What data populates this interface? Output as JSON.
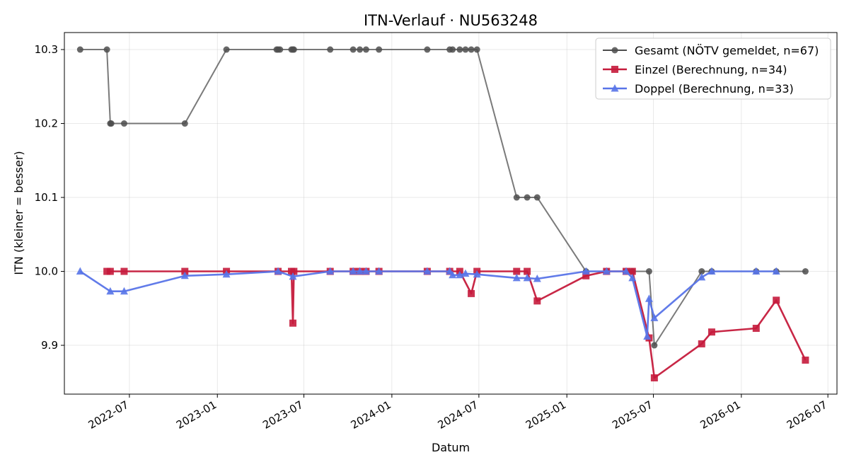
{
  "chart_data": {
    "type": "line",
    "title": "ITN-Verlauf · NU563248",
    "xlabel": "Datum",
    "ylabel": "ITN  (kleiner = besser)",
    "x_axis": {
      "kind": "date",
      "range": [
        "2022-02-15",
        "2026-07-20"
      ],
      "ticks": [
        "2022-07-01",
        "2023-01-01",
        "2023-07-01",
        "2024-01-01",
        "2024-07-01",
        "2025-01-01",
        "2025-07-01",
        "2026-01-01",
        "2026-07-01"
      ],
      "tick_labels": [
        "2022-07",
        "2023-01",
        "2023-07",
        "2024-01",
        "2024-07",
        "2025-01",
        "2025-07",
        "2026-01",
        "2026-07"
      ]
    },
    "y_axis": {
      "range": [
        9.834,
        10.323
      ],
      "ticks": [
        9.9,
        10.0,
        10.1,
        10.2,
        10.3
      ],
      "tick_labels": [
        "9.9",
        "10.0",
        "10.1",
        "10.2",
        "10.3"
      ]
    },
    "grid": true,
    "legend_position": "top-right",
    "series": [
      {
        "name": "Gesamt (NÖTV gemeldet, n=67)",
        "color": "#4d4d4d",
        "marker": "circle",
        "points": [
          [
            "2022-03-20",
            10.3
          ],
          [
            "2022-05-15",
            10.3
          ],
          [
            "2022-05-22",
            10.2
          ],
          [
            "2022-05-24",
            10.2
          ],
          [
            "2022-06-20",
            10.2
          ],
          [
            "2022-10-25",
            10.2
          ],
          [
            "2023-01-20",
            10.3
          ],
          [
            "2023-05-05",
            10.3
          ],
          [
            "2023-05-08",
            10.3
          ],
          [
            "2023-05-12",
            10.3
          ],
          [
            "2023-06-05",
            10.3
          ],
          [
            "2023-06-08",
            10.3
          ],
          [
            "2023-06-10",
            10.3
          ],
          [
            "2023-08-25",
            10.3
          ],
          [
            "2023-10-12",
            10.3
          ],
          [
            "2023-10-26",
            10.3
          ],
          [
            "2023-11-08",
            10.3
          ],
          [
            "2023-12-05",
            10.3
          ],
          [
            "2024-03-15",
            10.3
          ],
          [
            "2024-05-01",
            10.3
          ],
          [
            "2024-05-07",
            10.3
          ],
          [
            "2024-05-22",
            10.3
          ],
          [
            "2024-06-03",
            10.3
          ],
          [
            "2024-06-15",
            10.3
          ],
          [
            "2024-06-27",
            10.3
          ],
          [
            "2024-09-18",
            10.1
          ],
          [
            "2024-10-10",
            10.1
          ],
          [
            "2024-10-31",
            10.1
          ],
          [
            "2025-02-10",
            10.0
          ],
          [
            "2025-03-25",
            10.0
          ],
          [
            "2025-05-05",
            10.0
          ],
          [
            "2025-05-18",
            10.0
          ],
          [
            "2025-06-22",
            10.0
          ],
          [
            "2025-07-03",
            9.9
          ],
          [
            "2025-10-10",
            10.0
          ],
          [
            "2025-10-31",
            10.0
          ],
          [
            "2026-02-01",
            10.0
          ],
          [
            "2026-03-15",
            10.0
          ],
          [
            "2026-05-15",
            10.0
          ]
        ]
      },
      {
        "name": "Einzel (Berechnung, n=34)",
        "color": "#c51b3c",
        "marker": "square",
        "points": [
          [
            "2022-05-15",
            10.0
          ],
          [
            "2022-05-22",
            10.0
          ],
          [
            "2022-06-20",
            10.0
          ],
          [
            "2022-10-25",
            10.0
          ],
          [
            "2023-01-20",
            10.0
          ],
          [
            "2023-05-08",
            10.0
          ],
          [
            "2023-06-05",
            10.0
          ],
          [
            "2023-06-08",
            9.93
          ],
          [
            "2023-06-10",
            10.0
          ],
          [
            "2023-08-25",
            10.0
          ],
          [
            "2023-10-12",
            10.0
          ],
          [
            "2023-10-26",
            10.0
          ],
          [
            "2023-11-08",
            10.0
          ],
          [
            "2023-12-05",
            10.0
          ],
          [
            "2024-03-15",
            10.0
          ],
          [
            "2024-05-01",
            10.0
          ],
          [
            "2024-05-22",
            10.0
          ],
          [
            "2024-06-15",
            9.97
          ],
          [
            "2024-06-27",
            10.0
          ],
          [
            "2024-09-18",
            10.0
          ],
          [
            "2024-10-10",
            10.0
          ],
          [
            "2024-10-31",
            9.96
          ],
          [
            "2025-02-10",
            9.994
          ],
          [
            "2025-03-25",
            10.0
          ],
          [
            "2025-05-05",
            10.0
          ],
          [
            "2025-05-18",
            10.0
          ],
          [
            "2025-06-22",
            9.91
          ],
          [
            "2025-07-03",
            9.856
          ],
          [
            "2025-10-10",
            9.902
          ],
          [
            "2025-10-31",
            9.918
          ],
          [
            "2026-02-01",
            9.923
          ],
          [
            "2026-03-15",
            9.961
          ],
          [
            "2026-05-15",
            9.88
          ]
        ]
      },
      {
        "name": "Doppel (Berechnung, n=33)",
        "color": "#5874e8",
        "marker": "triangle",
        "points": [
          [
            "2022-03-20",
            10.0
          ],
          [
            "2022-05-22",
            9.973
          ],
          [
            "2022-06-20",
            9.973
          ],
          [
            "2022-10-25",
            9.994
          ],
          [
            "2023-01-20",
            9.996
          ],
          [
            "2023-05-08",
            10.0
          ],
          [
            "2023-06-08",
            9.993
          ],
          [
            "2023-08-25",
            10.0
          ],
          [
            "2023-10-12",
            10.0
          ],
          [
            "2023-10-26",
            10.0
          ],
          [
            "2023-11-08",
            10.0
          ],
          [
            "2023-12-05",
            10.0
          ],
          [
            "2024-03-15",
            10.0
          ],
          [
            "2024-05-01",
            10.0
          ],
          [
            "2024-05-07",
            9.995
          ],
          [
            "2024-05-22",
            9.995
          ],
          [
            "2024-06-03",
            9.997
          ],
          [
            "2024-06-27",
            9.996
          ],
          [
            "2024-09-18",
            9.991
          ],
          [
            "2024-10-10",
            9.991
          ],
          [
            "2024-10-31",
            9.99
          ],
          [
            "2025-02-10",
            10.0
          ],
          [
            "2025-03-25",
            10.0
          ],
          [
            "2025-05-05",
            10.0
          ],
          [
            "2025-05-18",
            9.991
          ],
          [
            "2025-06-18",
            9.912
          ],
          [
            "2025-06-22",
            9.963
          ],
          [
            "2025-07-03",
            9.937
          ],
          [
            "2025-10-10",
            9.992
          ],
          [
            "2025-10-31",
            10.0
          ],
          [
            "2026-02-01",
            10.0
          ],
          [
            "2026-03-15",
            10.0
          ]
        ]
      }
    ]
  }
}
